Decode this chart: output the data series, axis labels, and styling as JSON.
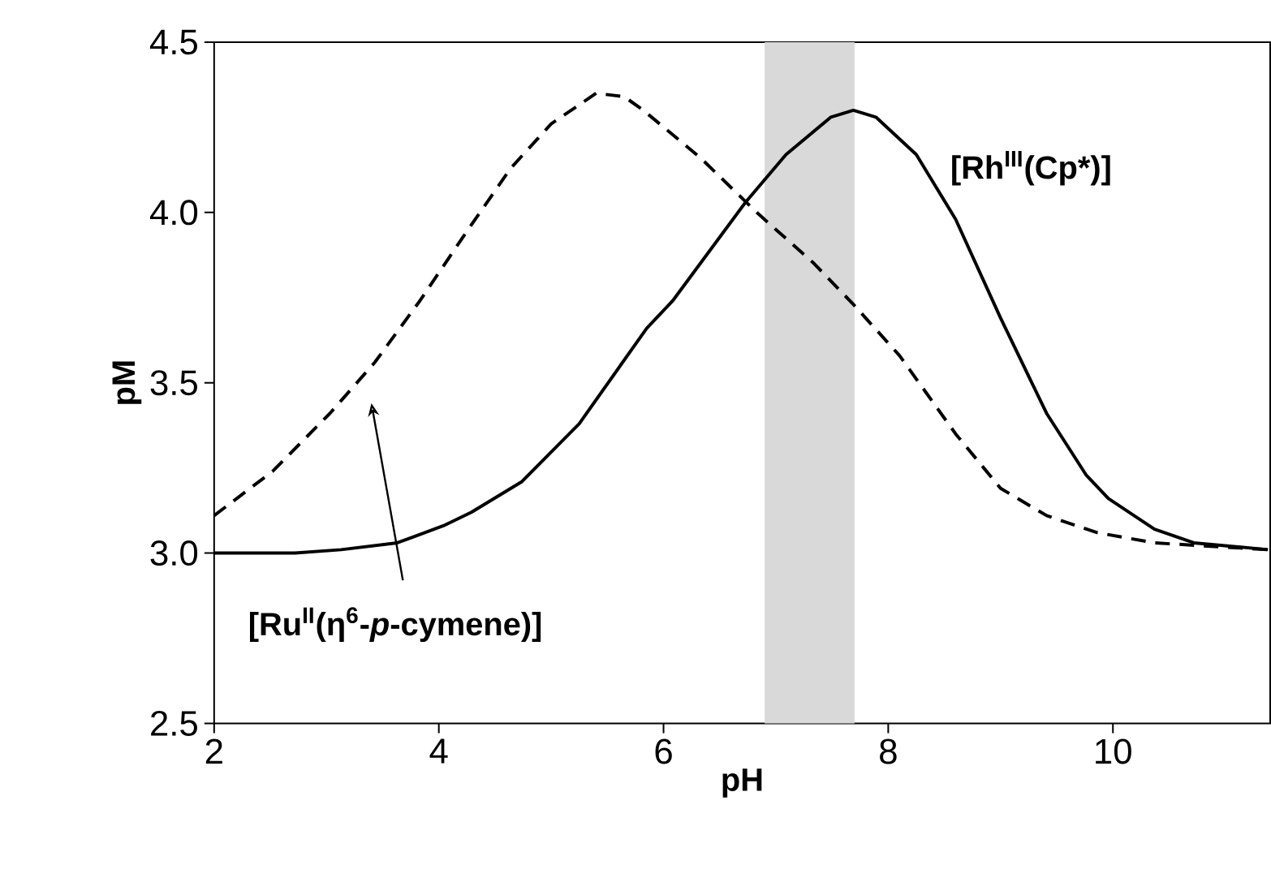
{
  "chart_data": {
    "type": "line",
    "xlabel": "pH",
    "ylabel": "pM",
    "xlim": [
      2,
      11.4
    ],
    "ylim": [
      2.5,
      4.5
    ],
    "xticks": [
      2,
      4,
      6,
      8,
      10
    ],
    "yticks": [
      {
        "value": 2.5,
        "label": "2.5"
      },
      {
        "value": 3,
        "label": "3.0"
      },
      {
        "value": 3.5,
        "label": "3.5"
      },
      {
        "value": 4,
        "label": "4.0"
      },
      {
        "value": 4.5,
        "label": "4.5"
      }
    ],
    "bands": [
      {
        "axis": "x",
        "from": 6.9,
        "to": 7.7,
        "color": "#d9d9d9"
      }
    ],
    "series": [
      {
        "name": "[Rh$^{III}$(Cp*)]",
        "color": "#000000",
        "line_style": "solid",
        "x": [
          2,
          2.72,
          3.13,
          3.63,
          4.04,
          4.29,
          4.74,
          5.25,
          5.85,
          6.08,
          6.73,
          7.09,
          7.49,
          7.69,
          7.89,
          8.25,
          8.6,
          9.0,
          9.41,
          9.76,
          9.96,
          10.37,
          10.72,
          11.38
        ],
        "values": [
          3.0,
          3.0,
          3.01,
          3.03,
          3.08,
          3.12,
          3.21,
          3.38,
          3.66,
          3.74,
          4.03,
          4.17,
          4.28,
          4.3,
          4.28,
          4.17,
          3.98,
          3.69,
          3.41,
          3.23,
          3.16,
          3.07,
          3.03,
          3.01
        ]
      },
      {
        "name": "[Ru$^{II}$(η$^{6}$-*p*-cymene)]",
        "color": "#000000",
        "line_style": "dashed",
        "x": [
          2,
          2.52,
          3.03,
          3.43,
          3.83,
          4.24,
          4.64,
          5.0,
          5.4,
          5.65,
          5.82,
          6.33,
          6.83,
          7.34,
          7.69,
          8.1,
          8.6,
          9.0,
          9.41,
          9.86,
          10.37,
          10.87,
          11.38
        ],
        "values": [
          3.11,
          3.24,
          3.41,
          3.56,
          3.74,
          3.94,
          4.13,
          4.26,
          4.35,
          4.34,
          4.3,
          4.16,
          4.0,
          3.85,
          3.73,
          3.58,
          3.35,
          3.19,
          3.11,
          3.06,
          3.03,
          3.02,
          3.01
        ]
      }
    ]
  }
}
